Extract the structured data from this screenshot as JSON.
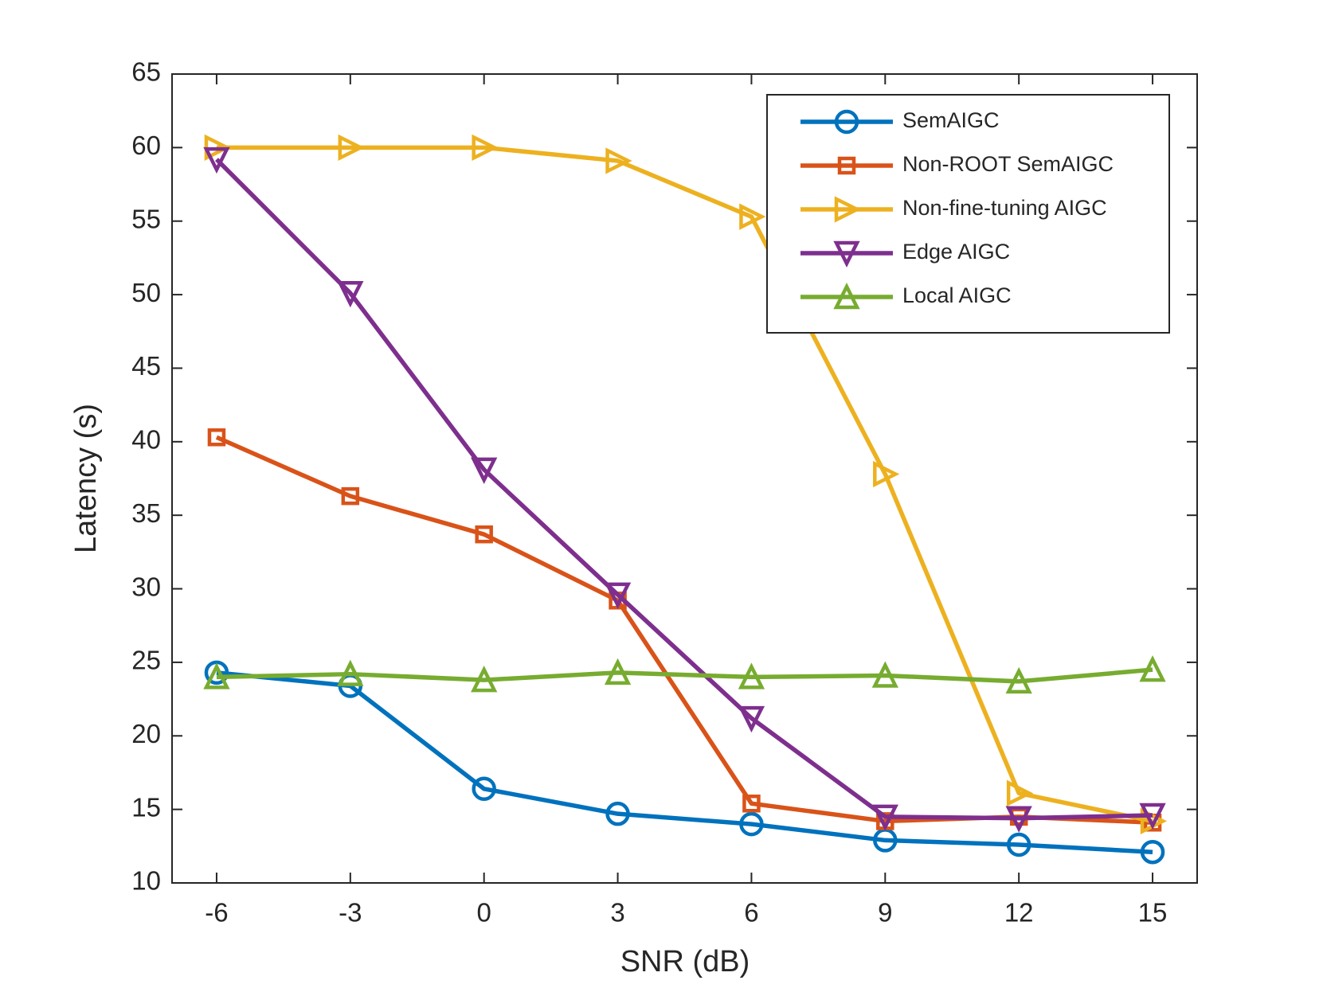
{
  "chart_data": {
    "type": "line",
    "xlabel": "SNR (dB)",
    "ylabel": "Latency (s)",
    "x": [
      -6,
      -3,
      0,
      3,
      6,
      9,
      12,
      15
    ],
    "xlim": [
      -7,
      16
    ],
    "xticks": [
      -6,
      -3,
      0,
      3,
      6,
      9,
      12,
      15
    ],
    "ylim": [
      10,
      65
    ],
    "yticks": [
      10,
      15,
      20,
      25,
      30,
      35,
      40,
      45,
      50,
      55,
      60,
      65
    ],
    "grid": false,
    "legend": "northeast",
    "series": [
      {
        "name": "SemAIGC",
        "color": "#0072BD",
        "marker": "circle",
        "values": [
          24.3,
          23.4,
          16.4,
          14.7,
          14.0,
          12.9,
          12.6,
          12.1
        ]
      },
      {
        "name": "Non-ROOT SemAIGC",
        "color": "#D95319",
        "marker": "square",
        "values": [
          40.3,
          36.3,
          33.7,
          29.2,
          15.4,
          14.2,
          14.5,
          14.1
        ]
      },
      {
        "name": "Non-fine-tuning AIGC",
        "color": "#EDB120",
        "marker": "triangle-right",
        "values": [
          60.0,
          60.0,
          60.0,
          59.1,
          55.3,
          37.8,
          16.1,
          14.2
        ]
      },
      {
        "name": "Edge AIGC",
        "color": "#7E2F8E",
        "marker": "triangle-down",
        "values": [
          59.2,
          50.1,
          38.1,
          29.6,
          21.2,
          14.5,
          14.4,
          14.6
        ]
      },
      {
        "name": "Local AIGC",
        "color": "#77AC30",
        "marker": "triangle-up",
        "values": [
          24.0,
          24.2,
          23.8,
          24.3,
          24.0,
          24.1,
          23.7,
          24.5
        ]
      }
    ]
  }
}
